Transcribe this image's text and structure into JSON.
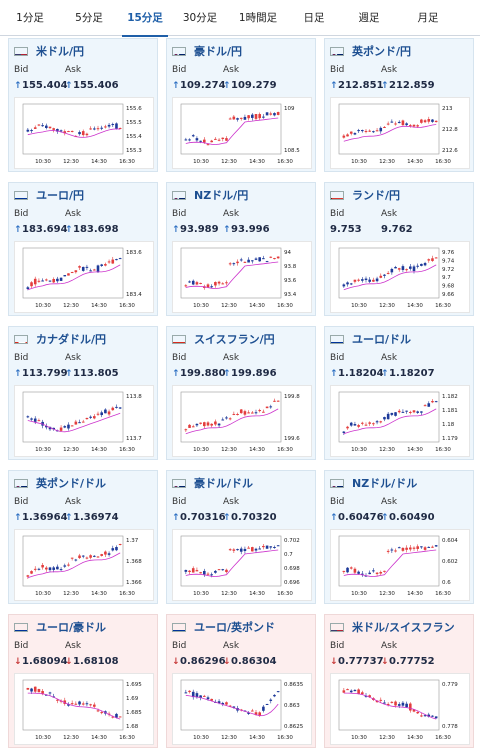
{
  "tabs": [
    "1分足",
    "5分足",
    "15分足",
    "30分足",
    "1時間足",
    "日足",
    "週足",
    "月足"
  ],
  "active_tab": 2,
  "labels": {
    "bid": "Bid",
    "ask": "Ask"
  },
  "colors": {
    "up_arrow": "#2d6fc2",
    "down_arrow": "#c73a3a",
    "bull": "#e33d3d",
    "bear": "#1e3a9a",
    "ma": "#cc33cc",
    "pair_text": "#1d4f91"
  },
  "time_labels": [
    "10:30",
    "12:30",
    "14:30",
    "16:30"
  ],
  "cards": [
    {
      "pair": "米ドル/円",
      "flag": "us-jp",
      "dir": "up",
      "bid": "155.404",
      "ask": "155.406",
      "yticks": [
        "155.6",
        "155.5",
        "155.4",
        "155.3"
      ],
      "trend": "flat-up"
    },
    {
      "pair": "豪ドル/円",
      "flag": "au-jp",
      "dir": "up",
      "bid": "109.274",
      "ask": "109.279",
      "yticks": [
        "109",
        "108.5"
      ],
      "trend": "jump"
    },
    {
      "pair": "英ポンド/円",
      "flag": "uk-jp",
      "dir": "up",
      "bid": "212.851",
      "ask": "212.859",
      "yticks": [
        "213",
        "212.8",
        "212.6"
      ],
      "trend": "up-flat"
    },
    {
      "pair": "ユーロ/円",
      "flag": "eu-jp",
      "dir": "up",
      "bid": "183.694",
      "ask": "183.698",
      "yticks": [
        "183.6",
        "183.4"
      ],
      "trend": "up"
    },
    {
      "pair": "NZドル/円",
      "flag": "nz-jp",
      "dir": "up",
      "bid": "93.989",
      "ask": "93.996",
      "yticks": [
        "94",
        "93.8",
        "93.6",
        "93.4"
      ],
      "trend": "jump"
    },
    {
      "pair": "ランド/円",
      "flag": "za-jp",
      "dir": "none",
      "bid": "9.753",
      "ask": "9.762",
      "yticks": [
        "9.76",
        "9.74",
        "9.72",
        "9.7",
        "9.68",
        "9.66"
      ],
      "trend": "up"
    },
    {
      "pair": "カナダドル/円",
      "flag": "ca-jp",
      "dir": "up",
      "bid": "113.799",
      "ask": "113.805",
      "yticks": [
        "113.8",
        "113.7"
      ],
      "trend": "dip-up"
    },
    {
      "pair": "スイスフラン/円",
      "flag": "ch-jp",
      "dir": "up",
      "bid": "199.880",
      "ask": "199.896",
      "yticks": [
        "199.8",
        "199.6"
      ],
      "trend": "up"
    },
    {
      "pair": "ユーロ/ドル",
      "flag": "eu-us",
      "dir": "up",
      "bid": "1.18204",
      "ask": "1.18207",
      "yticks": [
        "1.182",
        "1.181",
        "1.18",
        "1.179"
      ],
      "trend": "up"
    },
    {
      "pair": "英ポンド/ドル",
      "flag": "uk-us",
      "dir": "up",
      "bid": "1.36964",
      "ask": "1.36974",
      "yticks": [
        "1.37",
        "1.368",
        "1.366"
      ],
      "trend": "up"
    },
    {
      "pair": "豪ドル/ドル",
      "flag": "au-us",
      "dir": "up",
      "bid": "0.70316",
      "ask": "0.70320",
      "yticks": [
        "0.702",
        "0.7",
        "0.698",
        "0.696"
      ],
      "trend": "jump"
    },
    {
      "pair": "NZドル/ドル",
      "flag": "nz-us",
      "dir": "up",
      "bid": "0.60476",
      "ask": "0.60490",
      "yticks": [
        "0.604",
        "0.602",
        "0.6"
      ],
      "trend": "jump"
    },
    {
      "pair": "ユーロ/豪ドル",
      "flag": "eu-au",
      "dir": "down",
      "bid": "1.68094",
      "ask": "1.68108",
      "yticks": [
        "1.695",
        "1.69",
        "1.685",
        "1.68"
      ],
      "trend": "down"
    },
    {
      "pair": "ユーロ/英ポンド",
      "flag": "eu-uk",
      "dir": "down",
      "bid": "0.86296",
      "ask": "0.86304",
      "yticks": [
        "0.8635",
        "0.863",
        "0.8625"
      ],
      "trend": "down-recover"
    },
    {
      "pair": "米ドル/スイスフラン",
      "flag": "us-ch",
      "dir": "down",
      "bid": "0.77737",
      "ask": "0.77752",
      "yticks": [
        "0.779",
        "0.778"
      ],
      "trend": "down"
    }
  ]
}
